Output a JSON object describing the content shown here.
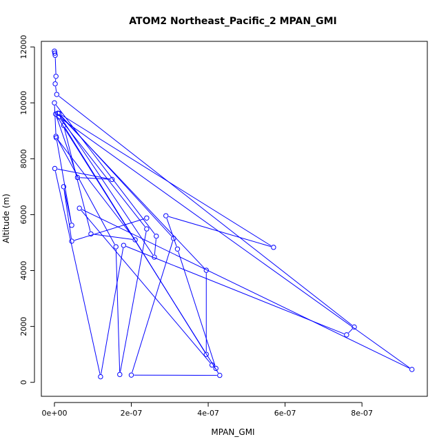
{
  "chart_data": {
    "type": "line",
    "title": "ATOM2 Northeast_Pacific_2 MPAN_GMI",
    "xlabel": "MPAN_GMI",
    "ylabel": "Altitude (m)",
    "xlim": [
      -3.4e-08,
      9.7e-07
    ],
    "ylim": [
      -500,
      12200
    ],
    "x_ticks": [
      0,
      2e-07,
      4e-07,
      6e-07,
      8e-07
    ],
    "x_tick_labels": [
      "0e+00",
      "2e-07",
      "4e-07",
      "6e-07",
      "8e-07"
    ],
    "y_ticks": [
      0,
      2000,
      4000,
      6000,
      8000,
      10000,
      12000
    ],
    "y_tick_labels": [
      "0",
      "2000",
      "4000",
      "6000",
      "8000",
      "10000",
      "12000"
    ],
    "grid": false,
    "marker": "open-circle",
    "series": [
      {
        "color": "#0000ff",
        "points": [
          [
            0.0,
            11850
          ],
          [
            1e-09,
            11780
          ],
          [
            2e-09,
            11700
          ],
          [
            4e-09,
            10950
          ],
          [
            2e-09,
            10680
          ],
          [
            6e-09,
            10300
          ],
          [
            7.8e-07,
            1980
          ],
          [
            7.6e-07,
            1700
          ],
          [
            1.8e-07,
            4900
          ],
          [
            1.2e-07,
            200
          ],
          [
            1e-09,
            7650
          ],
          [
            1.5e-07,
            7260
          ],
          [
            6e-08,
            7330
          ],
          [
            3e-09,
            9600
          ],
          [
            4.3e-07,
            250
          ],
          [
            2e-07,
            260
          ],
          [
            3.1e-07,
            5150
          ],
          [
            1.2e-08,
            9620
          ],
          [
            5.7e-07,
            4830
          ],
          [
            2.9e-07,
            5960
          ],
          [
            3.2e-07,
            4770
          ],
          [
            4.2e-07,
            500
          ],
          [
            4.1e-07,
            620
          ],
          [
            6.5e-08,
            6230
          ],
          [
            9.3e-07,
            460
          ],
          [
            1.1e-08,
            9500
          ],
          [
            2.4e-07,
            5490
          ],
          [
            1.7e-07,
            280
          ],
          [
            1.6e-07,
            4850
          ],
          [
            4e-09,
            8800
          ],
          [
            0.0,
            10000
          ],
          [
            2.65e-07,
            5230
          ],
          [
            2.6e-07,
            4480
          ],
          [
            9e-09,
            9630
          ],
          [
            3.95e-07,
            4010
          ],
          [
            3.95e-07,
            1000
          ],
          [
            2.4e-08,
            9190
          ],
          [
            9.5e-08,
            5310
          ],
          [
            2.1e-07,
            5100
          ],
          [
            5e-09,
            8750
          ],
          [
            4.5e-08,
            5620
          ],
          [
            2.4e-08,
            7000
          ],
          [
            4.5e-08,
            5050
          ],
          [
            2.4e-07,
            5880
          ]
        ]
      }
    ]
  }
}
